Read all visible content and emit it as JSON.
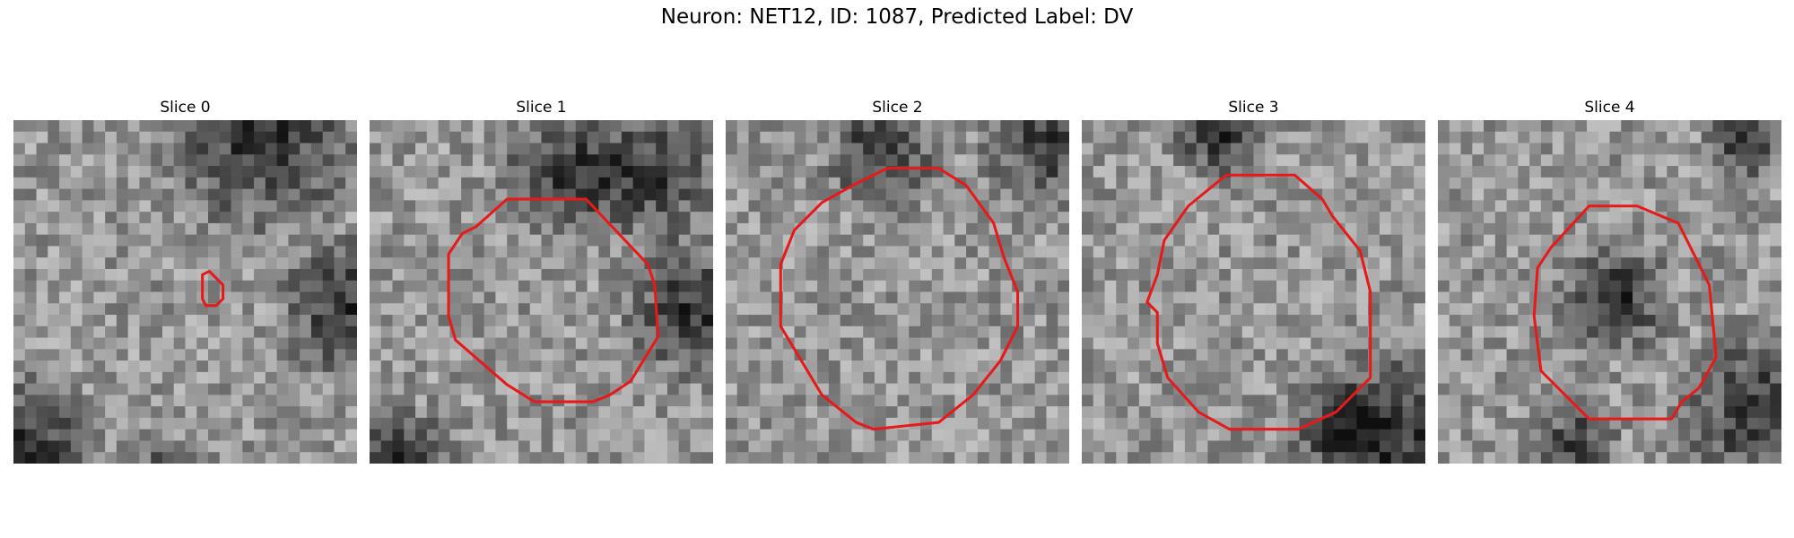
{
  "figure": {
    "title": "Neuron: NET12, ID: 1087, Predicted Label: DV"
  },
  "panels": [
    {
      "title": "Slice 0",
      "grid": 30,
      "seed": 11,
      "contour_color": "#e61a1a",
      "dark_regions": [
        [
          0.72,
          0.05,
          0.35
        ],
        [
          0.98,
          0.55,
          0.25
        ],
        [
          0.05,
          0.95,
          0.25
        ],
        [
          0.45,
          1.1,
          0.2
        ]
      ],
      "contour": [
        [
          0.55,
          0.45
        ],
        [
          0.57,
          0.44
        ],
        [
          0.61,
          0.48
        ],
        [
          0.61,
          0.52
        ],
        [
          0.59,
          0.54
        ],
        [
          0.56,
          0.54
        ],
        [
          0.55,
          0.52
        ]
      ]
    },
    {
      "title": "Slice 1",
      "grid": 30,
      "seed": 23,
      "contour_color": "#e61a1a",
      "dark_regions": [
        [
          0.8,
          0.15,
          0.25
        ],
        [
          0.55,
          0.15,
          0.2
        ],
        [
          0.95,
          0.55,
          0.25
        ],
        [
          0.1,
          1.0,
          0.2
        ]
      ],
      "contour": [
        [
          0.4,
          0.23
        ],
        [
          0.63,
          0.23
        ],
        [
          0.81,
          0.42
        ],
        [
          0.83,
          0.48
        ],
        [
          0.84,
          0.63
        ],
        [
          0.76,
          0.76
        ],
        [
          0.7,
          0.8
        ],
        [
          0.65,
          0.82
        ],
        [
          0.48,
          0.82
        ],
        [
          0.4,
          0.77
        ],
        [
          0.25,
          0.64
        ],
        [
          0.23,
          0.57
        ],
        [
          0.23,
          0.39
        ],
        [
          0.27,
          0.33
        ],
        [
          0.31,
          0.31
        ]
      ]
    },
    {
      "title": "Slice 2",
      "grid": 30,
      "seed": 37,
      "contour_color": "#e61a1a",
      "dark_regions": [
        [
          0.95,
          0.05,
          0.25
        ],
        [
          0.45,
          0.1,
          0.2
        ]
      ],
      "contour": [
        [
          0.47,
          0.14
        ],
        [
          0.62,
          0.14
        ],
        [
          0.7,
          0.19
        ],
        [
          0.78,
          0.3
        ],
        [
          0.81,
          0.4
        ],
        [
          0.85,
          0.5
        ],
        [
          0.85,
          0.6
        ],
        [
          0.8,
          0.7
        ],
        [
          0.72,
          0.8
        ],
        [
          0.62,
          0.88
        ],
        [
          0.43,
          0.9
        ],
        [
          0.38,
          0.88
        ],
        [
          0.28,
          0.8
        ],
        [
          0.22,
          0.7
        ],
        [
          0.16,
          0.6
        ],
        [
          0.16,
          0.42
        ],
        [
          0.2,
          0.32
        ],
        [
          0.28,
          0.24
        ],
        [
          0.37,
          0.19
        ]
      ]
    },
    {
      "title": "Slice 3",
      "grid": 30,
      "seed": 49,
      "contour_color": "#e61a1a",
      "dark_regions": [
        [
          0.95,
          0.9,
          0.3
        ],
        [
          0.75,
          0.9,
          0.2
        ],
        [
          0.4,
          0.05,
          0.15
        ]
      ],
      "contour": [
        [
          0.42,
          0.16
        ],
        [
          0.62,
          0.16
        ],
        [
          0.7,
          0.23
        ],
        [
          0.73,
          0.28
        ],
        [
          0.81,
          0.38
        ],
        [
          0.84,
          0.5
        ],
        [
          0.84,
          0.75
        ],
        [
          0.74,
          0.85
        ],
        [
          0.63,
          0.9
        ],
        [
          0.43,
          0.9
        ],
        [
          0.34,
          0.85
        ],
        [
          0.25,
          0.75
        ],
        [
          0.22,
          0.65
        ],
        [
          0.22,
          0.56
        ],
        [
          0.19,
          0.53
        ],
        [
          0.22,
          0.45
        ],
        [
          0.24,
          0.35
        ],
        [
          0.31,
          0.25
        ]
      ]
    },
    {
      "title": "Slice 4",
      "grid": 30,
      "seed": 61,
      "contour_color": "#e61a1a",
      "dark_regions": [
        [
          0.52,
          0.52,
          0.2
        ],
        [
          0.95,
          0.85,
          0.3
        ],
        [
          0.4,
          0.95,
          0.15
        ],
        [
          0.9,
          0.05,
          0.15
        ]
      ],
      "contour": [
        [
          0.44,
          0.25
        ],
        [
          0.58,
          0.25
        ],
        [
          0.7,
          0.3
        ],
        [
          0.76,
          0.42
        ],
        [
          0.79,
          0.48
        ],
        [
          0.81,
          0.69
        ],
        [
          0.76,
          0.78
        ],
        [
          0.71,
          0.82
        ],
        [
          0.68,
          0.87
        ],
        [
          0.44,
          0.87
        ],
        [
          0.3,
          0.73
        ],
        [
          0.28,
          0.57
        ],
        [
          0.29,
          0.43
        ],
        [
          0.33,
          0.37
        ]
      ]
    }
  ]
}
